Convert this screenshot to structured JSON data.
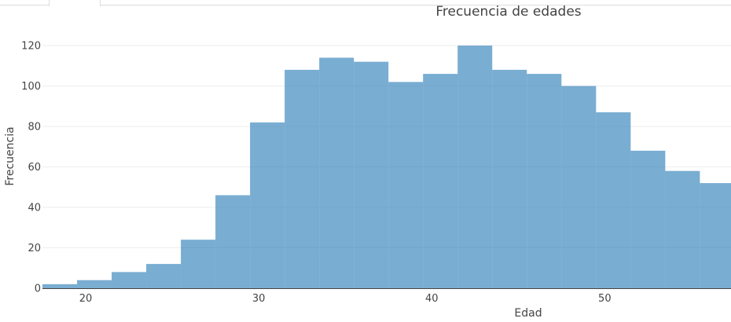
{
  "chart_data": {
    "type": "bar",
    "title": "Frecuencia de edades",
    "xlabel": "Edad",
    "ylabel": "Frecuencia",
    "xlim": [
      17.5,
      57.3
    ],
    "ylim": [
      0,
      127
    ],
    "xticks": [
      20,
      30,
      40,
      50
    ],
    "yticks": [
      0,
      20,
      40,
      60,
      80,
      100,
      120
    ],
    "grid": true,
    "bar_color": "#1f77b4",
    "bar_opacity": 0.6,
    "bins": [
      {
        "start": 17.5,
        "end": 19.5,
        "value": 2
      },
      {
        "start": 19.5,
        "end": 21.5,
        "value": 4
      },
      {
        "start": 21.5,
        "end": 23.5,
        "value": 8
      },
      {
        "start": 23.5,
        "end": 25.5,
        "value": 12
      },
      {
        "start": 25.5,
        "end": 27.5,
        "value": 24
      },
      {
        "start": 27.5,
        "end": 29.5,
        "value": 46
      },
      {
        "start": 29.5,
        "end": 31.5,
        "value": 82
      },
      {
        "start": 31.5,
        "end": 33.5,
        "value": 108
      },
      {
        "start": 33.5,
        "end": 35.5,
        "value": 114
      },
      {
        "start": 35.5,
        "end": 37.5,
        "value": 112
      },
      {
        "start": 37.5,
        "end": 39.5,
        "value": 102
      },
      {
        "start": 39.5,
        "end": 41.5,
        "value": 106
      },
      {
        "start": 41.5,
        "end": 43.5,
        "value": 120
      },
      {
        "start": 43.5,
        "end": 45.5,
        "value": 108
      },
      {
        "start": 45.5,
        "end": 47.5,
        "value": 106
      },
      {
        "start": 47.5,
        "end": 49.5,
        "value": 100
      },
      {
        "start": 49.5,
        "end": 51.5,
        "value": 87
      },
      {
        "start": 51.5,
        "end": 53.5,
        "value": 68
      },
      {
        "start": 53.5,
        "end": 55.5,
        "value": 58
      },
      {
        "start": 55.5,
        "end": 57.5,
        "value": 52
      }
    ]
  }
}
